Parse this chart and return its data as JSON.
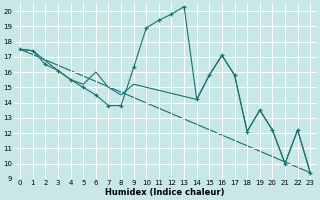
{
  "xlabel": "Humidex (Indice chaleur)",
  "bg_color": "#c8e8e8",
  "grid_color": "#ffffff",
  "line_color": "#1a7070",
  "xlim": [
    -0.5,
    23.5
  ],
  "ylim": [
    9,
    20.5
  ],
  "xticks": [
    0,
    1,
    2,
    3,
    4,
    5,
    6,
    7,
    8,
    9,
    10,
    11,
    12,
    13,
    14,
    15,
    16,
    17,
    18,
    19,
    20,
    21,
    22,
    23
  ],
  "yticks": [
    9,
    10,
    11,
    12,
    13,
    14,
    15,
    16,
    17,
    18,
    19,
    20
  ],
  "series_main": {
    "x": [
      0,
      1,
      2,
      3,
      4,
      5,
      6,
      7,
      8,
      9,
      10,
      11,
      12,
      13,
      14,
      15,
      16,
      17,
      18,
      19,
      20,
      21,
      22,
      23
    ],
    "y": [
      17.5,
      17.4,
      16.5,
      16.1,
      15.5,
      15.0,
      14.5,
      13.8,
      13.8,
      16.3,
      18.9,
      19.4,
      19.8,
      20.3,
      14.2,
      15.8,
      17.1,
      15.8,
      12.1,
      13.5,
      12.2,
      10.0,
      12.2,
      9.4
    ]
  },
  "series_smooth": {
    "x": [
      0,
      1,
      3,
      4,
      5,
      6,
      7,
      8,
      9,
      14,
      15,
      16,
      17,
      18,
      19,
      20,
      21,
      22,
      23
    ],
    "y": [
      17.5,
      17.4,
      16.1,
      15.5,
      15.2,
      16.0,
      15.0,
      14.5,
      15.2,
      14.2,
      15.8,
      17.1,
      15.8,
      12.1,
      13.5,
      12.2,
      10.0,
      12.2,
      9.4
    ]
  },
  "series_diag": {
    "x": [
      0,
      23
    ],
    "y": [
      17.5,
      9.4
    ]
  }
}
